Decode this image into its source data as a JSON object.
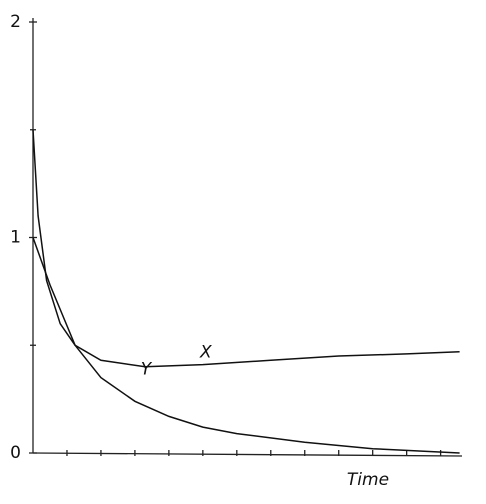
{
  "chart_data": {
    "type": "line",
    "x_label": "Time",
    "xlim": [
      0,
      12.6
    ],
    "ylim": [
      0,
      2
    ],
    "xticks": [
      1,
      2,
      3,
      4,
      5,
      6,
      7,
      8,
      9,
      10,
      11,
      12
    ],
    "yticks": [
      0,
      1,
      2
    ],
    "yminor_ticks": [
      0.5,
      1.5
    ],
    "series": [
      {
        "name": "X",
        "color": "#111111",
        "x": [
          0,
          0.15,
          0.4,
          0.8,
          1.24,
          2,
          3.3,
          5,
          7,
          9,
          11,
          12.56
        ],
        "values": [
          1.5,
          1.1,
          0.8,
          0.6,
          0.5,
          0.43,
          0.4,
          0.41,
          0.43,
          0.45,
          0.46,
          0.47
        ]
      },
      {
        "name": "Y",
        "color": "#111111",
        "x": [
          0,
          0.5,
          1.24,
          2,
          3,
          4,
          5,
          6,
          8,
          10,
          12.56
        ],
        "values": [
          1.0,
          0.78,
          0.5,
          0.35,
          0.24,
          0.17,
          0.12,
          0.09,
          0.05,
          0.02,
          0.0
        ]
      }
    ]
  }
}
